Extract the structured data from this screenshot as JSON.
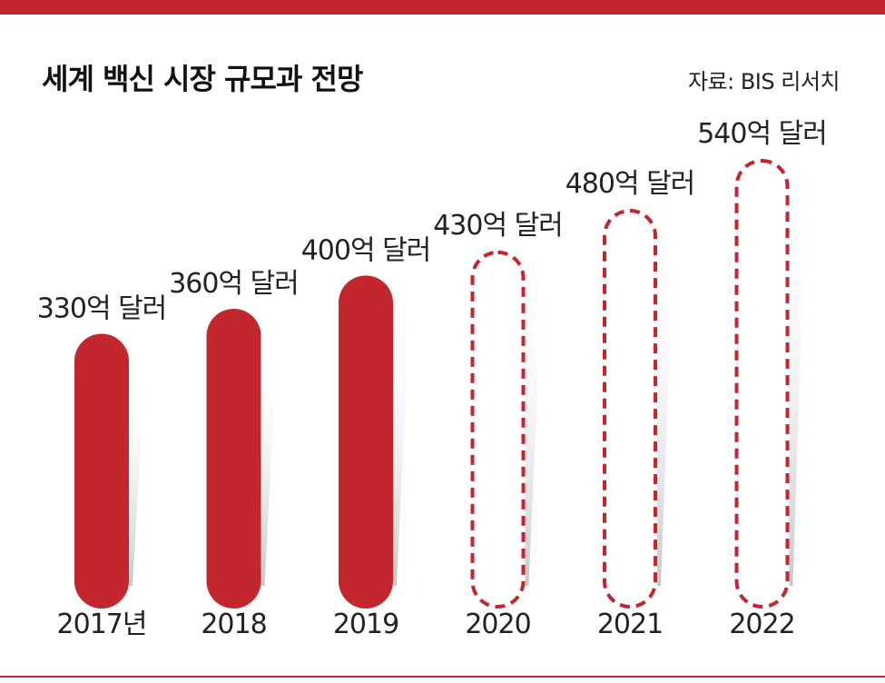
{
  "title": "세계 백신 시장 규모과 전망",
  "source": "자료: BIS 리서치",
  "colors": {
    "accent": "#c1272d",
    "text": "#222222"
  },
  "chart_data": {
    "type": "bar",
    "title": "세계 백신 시장 규모과 전망",
    "categories": [
      "2017년",
      "2018",
      "2019",
      "2020",
      "2021",
      "2022"
    ],
    "values": [
      330,
      360,
      400,
      430,
      480,
      540
    ],
    "value_labels": [
      "330억 달러",
      "360억 달러",
      "400억 달러",
      "430억 달러",
      "480억 달러",
      "540억 달러"
    ],
    "projected": [
      false,
      false,
      false,
      true,
      true,
      true
    ],
    "unit": "억 달러",
    "ylim": [
      0,
      540
    ],
    "grid": false,
    "legend": "none"
  }
}
